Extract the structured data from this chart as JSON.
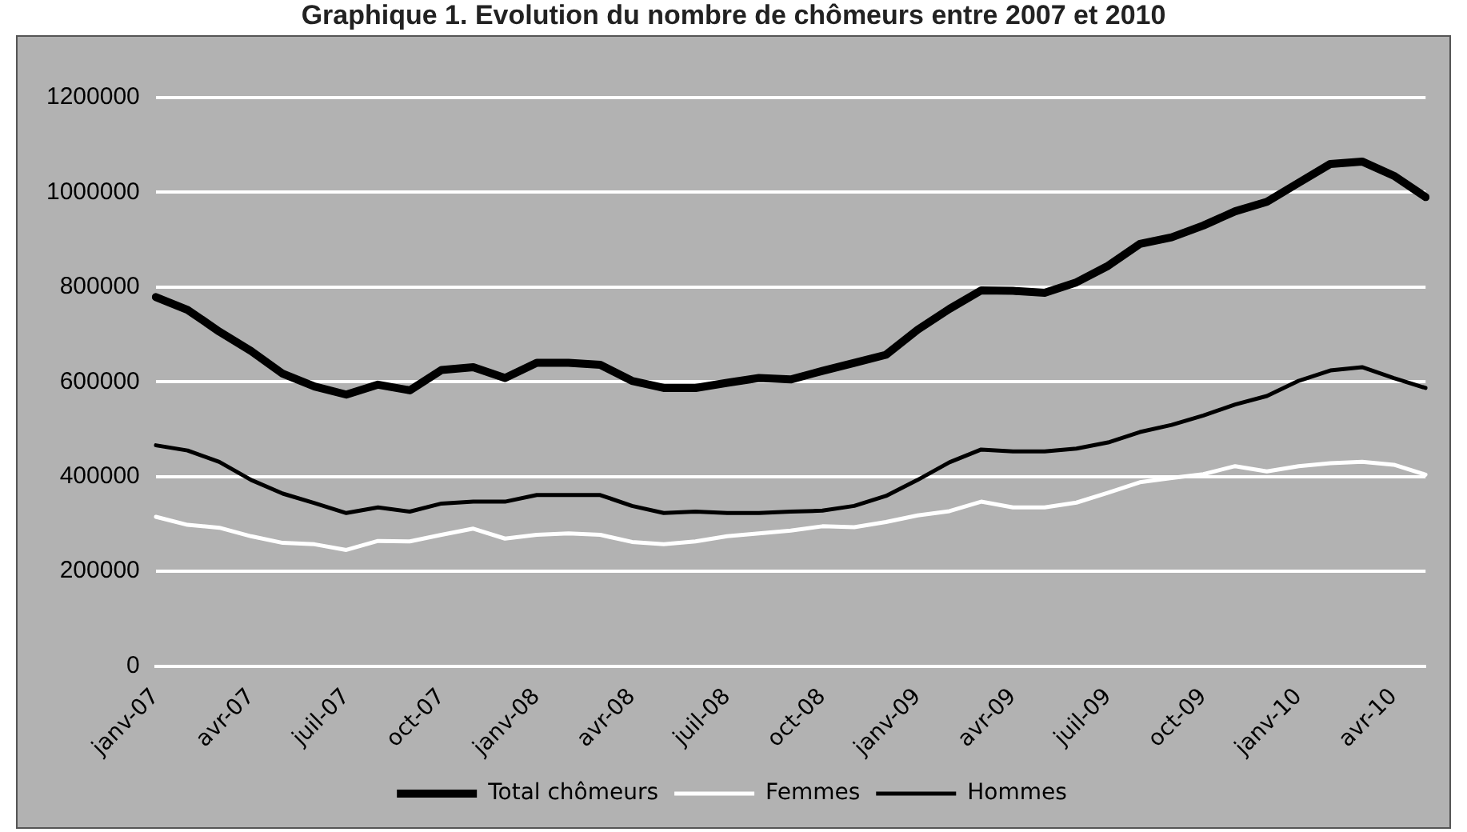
{
  "chart_data": {
    "type": "line",
    "title": "Graphique 1. Evolution du nombre de chômeurs entre 2007 et 2010",
    "categories": [
      "janv-07",
      null,
      null,
      "avr-07",
      null,
      null,
      "juil-07",
      null,
      null,
      "oct-07",
      null,
      null,
      "janv-08",
      null,
      null,
      "avr-08",
      null,
      null,
      "juil-08",
      null,
      null,
      "oct-08",
      null,
      null,
      "janv-09",
      null,
      null,
      "avr-09",
      null,
      null,
      "juil-09",
      null,
      null,
      "oct-09",
      null,
      null,
      "janv-10",
      null,
      null,
      "avr-10",
      null
    ],
    "series": [
      {
        "name": "Total chômeurs",
        "color": "#000000",
        "values": [
          779000,
          752000,
          706000,
          665000,
          617000,
          590000,
          573000,
          594000,
          582000,
          625000,
          631000,
          608000,
          640000,
          640000,
          636000,
          602000,
          587000,
          587000,
          598000,
          608000,
          605000,
          623000,
          640000,
          657000,
          710000,
          754000,
          793000,
          792000,
          788000,
          810000,
          845000,
          891000,
          905000,
          930000,
          960000,
          980000,
          1020000,
          1060000,
          1065000,
          1035000,
          990000
        ]
      },
      {
        "name": "Femmes",
        "color": "#ffffff",
        "values": [
          315000,
          298000,
          292000,
          274000,
          260000,
          257000,
          245000,
          264000,
          263000,
          277000,
          290000,
          269000,
          277000,
          280000,
          277000,
          262000,
          257000,
          263000,
          274000,
          280000,
          286000,
          295000,
          293000,
          304000,
          318000,
          327000,
          347000,
          335000,
          335000,
          345000,
          366000,
          388000,
          397000,
          405000,
          422000,
          411000,
          422000,
          428000,
          431000,
          425000,
          404000
        ]
      },
      {
        "name": "Hommes",
        "color": "#000000",
        "values": [
          466000,
          455000,
          431000,
          393000,
          364000,
          344000,
          323000,
          335000,
          326000,
          343000,
          347000,
          347000,
          361000,
          361000,
          361000,
          338000,
          323000,
          326000,
          323000,
          323000,
          326000,
          328000,
          338000,
          359000,
          393000,
          430000,
          457000,
          453000,
          453000,
          459000,
          472000,
          494000,
          509000,
          529000,
          552000,
          570000,
          602000,
          624000,
          631000,
          608000,
          587000
        ]
      }
    ],
    "ylim": [
      0,
      1200000
    ],
    "yticks": [
      0,
      200000,
      400000,
      600000,
      800000,
      1000000,
      1200000
    ],
    "grid": "y",
    "legend": "bottom",
    "marker": "none",
    "line_style": "solid"
  }
}
